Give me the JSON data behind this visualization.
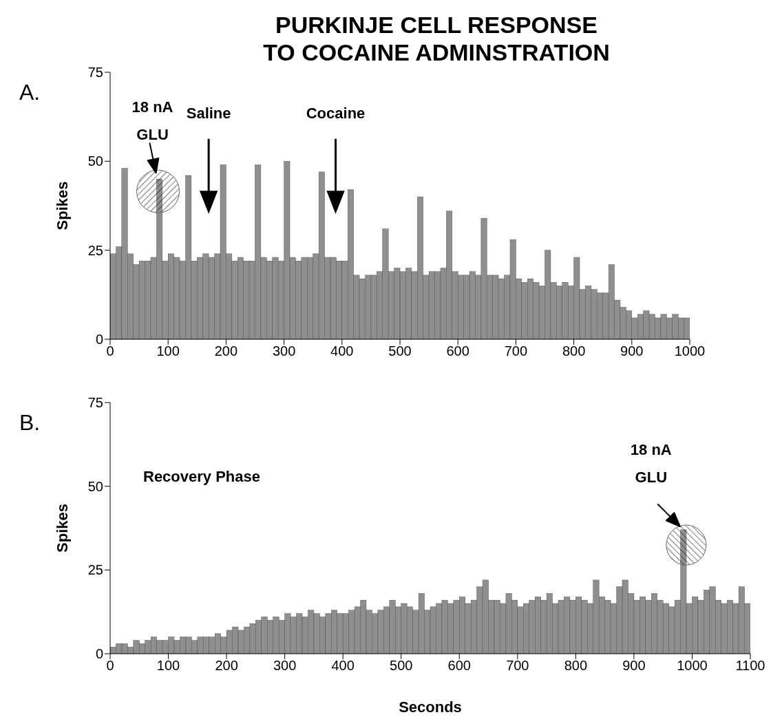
{
  "chart_data": [
    {
      "type": "histogram",
      "title": "PURKINJE CELL RESPONSE\nTO COCAINE ADMINSTRATION",
      "ylabel": "Spikes",
      "color": "#8f8f8f",
      "xlim": [
        0,
        1000
      ],
      "xticks": [
        0,
        100,
        200,
        300,
        400,
        500,
        600,
        700,
        800,
        900,
        1000
      ],
      "ylim": [
        0,
        75
      ],
      "yticks": [
        0,
        25,
        50,
        75
      ],
      "bins": [
        0,
        10,
        20,
        30,
        40,
        50,
        60,
        70,
        80,
        90,
        100,
        110,
        120,
        130,
        140,
        150,
        160,
        170,
        180,
        190,
        200,
        210,
        220,
        230,
        240,
        250,
        260,
        270,
        280,
        290,
        300,
        310,
        320,
        330,
        340,
        350,
        360,
        370,
        380,
        390,
        400,
        410,
        420,
        430,
        440,
        450,
        460,
        470,
        480,
        490,
        500,
        510,
        520,
        530,
        540,
        550,
        560,
        570,
        580,
        590,
        600,
        610,
        620,
        630,
        640,
        650,
        660,
        670,
        680,
        690,
        700,
        710,
        720,
        730,
        740,
        750,
        760,
        770,
        780,
        790,
        800,
        810,
        820,
        830,
        840,
        850,
        860,
        870,
        880,
        890,
        900,
        910,
        920,
        930,
        940,
        950,
        960,
        970,
        980,
        990,
        1000
      ],
      "values": [
        24,
        26,
        48,
        24,
        21,
        22,
        22,
        23,
        45,
        22,
        24,
        23,
        22,
        46,
        22,
        23,
        24,
        23,
        24,
        49,
        24,
        22,
        23,
        22,
        22,
        49,
        23,
        22,
        23,
        22,
        50,
        23,
        22,
        23,
        23,
        24,
        47,
        23,
        23,
        22,
        22,
        42,
        18,
        17,
        18,
        18,
        19,
        31,
        19,
        20,
        19,
        20,
        19,
        40,
        18,
        19,
        19,
        20,
        36,
        19,
        18,
        18,
        19,
        18,
        34,
        18,
        18,
        17,
        18,
        28,
        17,
        16,
        17,
        16,
        15,
        25,
        16,
        15,
        16,
        15,
        23,
        14,
        15,
        14,
        13,
        13,
        21,
        11,
        9,
        8,
        6,
        7,
        8,
        7,
        6,
        7,
        6,
        7,
        6,
        6
      ],
      "annotations": [
        "A.",
        {
          "text": "18 nA\nGLU",
          "x": 85,
          "y": 45
        },
        "Saline",
        "Cocaine"
      ]
    },
    {
      "type": "histogram",
      "xlabel": "Seconds",
      "ylabel": "Spikes",
      "color": "#8f8f8f",
      "xlim": [
        0,
        1100
      ],
      "xticks": [
        0,
        100,
        200,
        300,
        400,
        500,
        600,
        700,
        800,
        900,
        1000,
        1100
      ],
      "ylim": [
        0,
        75
      ],
      "yticks": [
        0,
        25,
        50,
        75
      ],
      "bins": [
        0,
        10,
        20,
        30,
        40,
        50,
        60,
        70,
        80,
        90,
        100,
        110,
        120,
        130,
        140,
        150,
        160,
        170,
        180,
        190,
        200,
        210,
        220,
        230,
        240,
        250,
        260,
        270,
        280,
        290,
        300,
        310,
        320,
        330,
        340,
        350,
        360,
        370,
        380,
        390,
        400,
        410,
        420,
        430,
        440,
        450,
        460,
        470,
        480,
        490,
        500,
        510,
        520,
        530,
        540,
        550,
        560,
        570,
        580,
        590,
        600,
        610,
        620,
        630,
        640,
        650,
        660,
        670,
        680,
        690,
        700,
        710,
        720,
        730,
        740,
        750,
        760,
        770,
        780,
        790,
        800,
        810,
        820,
        830,
        840,
        850,
        860,
        870,
        880,
        890,
        900,
        910,
        920,
        930,
        940,
        950,
        960,
        970,
        980,
        990,
        1000,
        1010,
        1020,
        1030,
        1040,
        1050,
        1060,
        1070,
        1080,
        1090,
        1100
      ],
      "values": [
        2,
        3,
        3,
        2,
        4,
        3,
        4,
        5,
        4,
        4,
        5,
        4,
        5,
        5,
        4,
        5,
        5,
        5,
        6,
        5,
        7,
        8,
        7,
        8,
        9,
        10,
        11,
        10,
        11,
        10,
        12,
        11,
        12,
        11,
        13,
        12,
        11,
        12,
        13,
        12,
        12,
        13,
        14,
        16,
        13,
        12,
        13,
        14,
        16,
        14,
        15,
        14,
        13,
        18,
        13,
        14,
        15,
        16,
        15,
        16,
        17,
        15,
        16,
        20,
        22,
        16,
        16,
        15,
        18,
        16,
        14,
        15,
        16,
        17,
        16,
        18,
        15,
        16,
        17,
        16,
        17,
        16,
        15,
        22,
        17,
        16,
        15,
        20,
        22,
        18,
        16,
        17,
        16,
        18,
        16,
        15,
        14,
        16,
        37,
        15,
        17,
        16,
        19,
        20,
        16,
        15,
        16,
        15,
        20,
        15
      ],
      "annotations": [
        "B.",
        "Recovery Phase",
        "18 nA\nGLU"
      ]
    }
  ]
}
